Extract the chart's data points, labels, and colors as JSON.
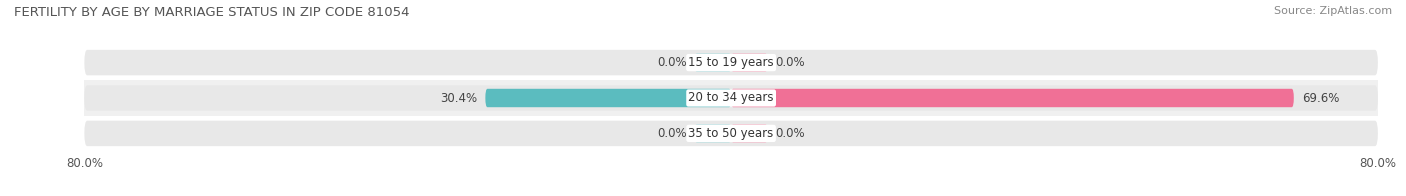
{
  "title": "FERTILITY BY AGE BY MARRIAGE STATUS IN ZIP CODE 81054",
  "source": "Source: ZipAtlas.com",
  "categories": [
    "15 to 19 years",
    "20 to 34 years",
    "35 to 50 years"
  ],
  "married_values": [
    0.0,
    30.4,
    0.0
  ],
  "unmarried_values": [
    0.0,
    69.6,
    0.0
  ],
  "married_color": "#5bbcbf",
  "unmarried_color": "#f07096",
  "married_bg_color": "#b8e0e2",
  "unmarried_bg_color": "#f5b8c8",
  "xlim": [
    -80,
    80
  ],
  "title_fontsize": 9.5,
  "source_fontsize": 8,
  "label_fontsize": 8.5,
  "cat_fontsize": 8.5,
  "bar_height": 0.52,
  "bg_bar_height": 0.72,
  "figure_bg_color": "#ffffff",
  "row_bg_alt": "#f0f0f0",
  "row_bg_main": "#ffffff",
  "row_sep_color": "#cccccc"
}
